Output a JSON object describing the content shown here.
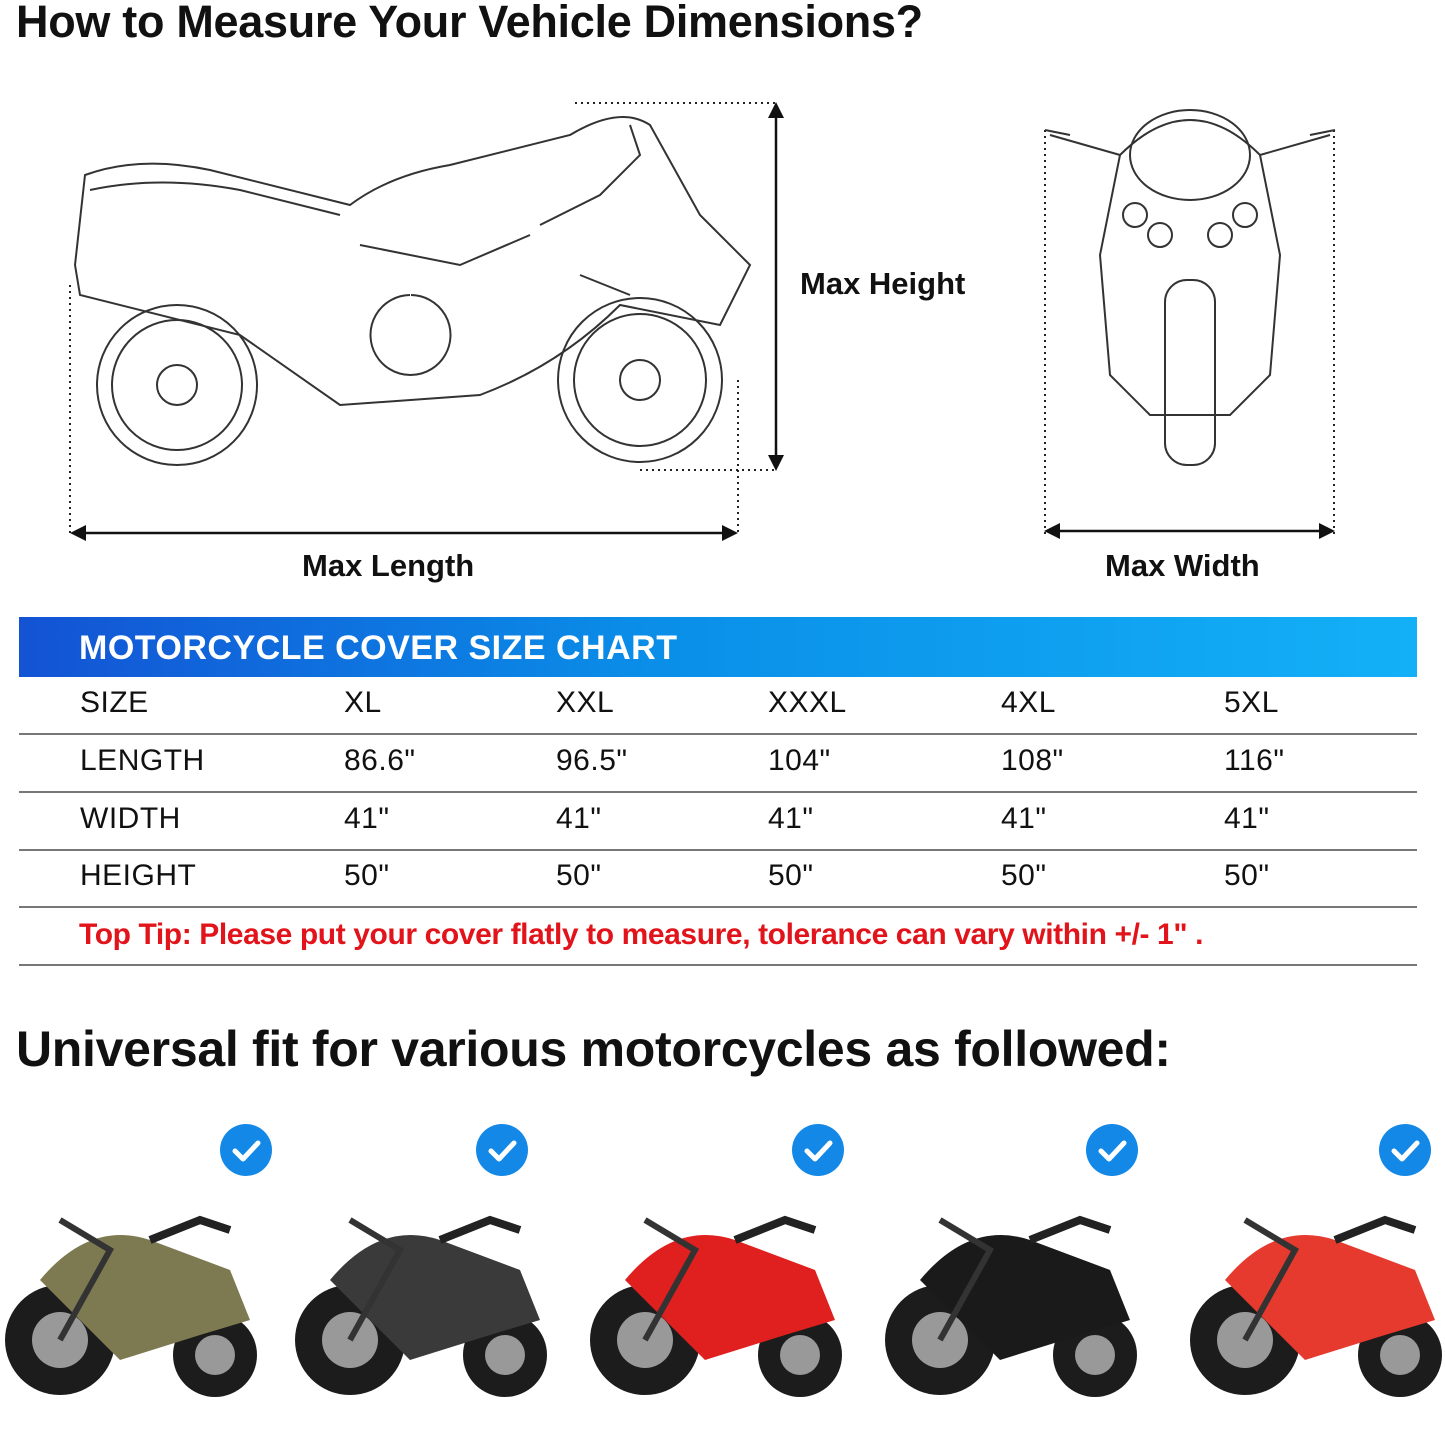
{
  "measure": {
    "title": "How to Measure Your Vehicle Dimensions?",
    "max_height": "Max Height",
    "max_length": "Max Length",
    "max_width": "Max Width"
  },
  "size_chart": {
    "title": "MOTORCYCLE COVER SIZE CHART",
    "banner_colors": [
      "#1353d4",
      "#13b0f7"
    ],
    "rows": [
      {
        "label": "SIZE",
        "values": [
          "XL",
          "XXL",
          "XXXL",
          "4XL",
          "5XL"
        ]
      },
      {
        "label": "LENGTH",
        "values": [
          "86.6\"",
          "96.5\"",
          "104\"",
          "108\"",
          "116\""
        ]
      },
      {
        "label": "WIDTH",
        "values": [
          "41\"",
          "41\"",
          "41\"",
          "41\"",
          "41\""
        ]
      },
      {
        "label": "HEIGHT",
        "values": [
          "50\"",
          "50\"",
          "50\"",
          "50\"",
          "50\""
        ]
      }
    ],
    "tip": "Top Tip: Please put your cover flatly to measure, tolerance can vary within +/- 1\" .",
    "tip_color": "#e2141b"
  },
  "fit": {
    "title": "Universal fit for various motorcycles as followed:",
    "bikes": [
      {
        "type": "cruiser",
        "color": "#7d7a52",
        "icon": "check-icon"
      },
      {
        "type": "scooter",
        "color": "#3a3a3a",
        "icon": "check-icon"
      },
      {
        "type": "sport",
        "color": "#e0201e",
        "icon": "check-icon"
      },
      {
        "type": "cruiser",
        "color": "#1a1a1a",
        "icon": "check-icon"
      },
      {
        "type": "vespa",
        "color": "#e63a2e",
        "icon": "check-icon"
      }
    ],
    "check_color": "#1488e6"
  }
}
